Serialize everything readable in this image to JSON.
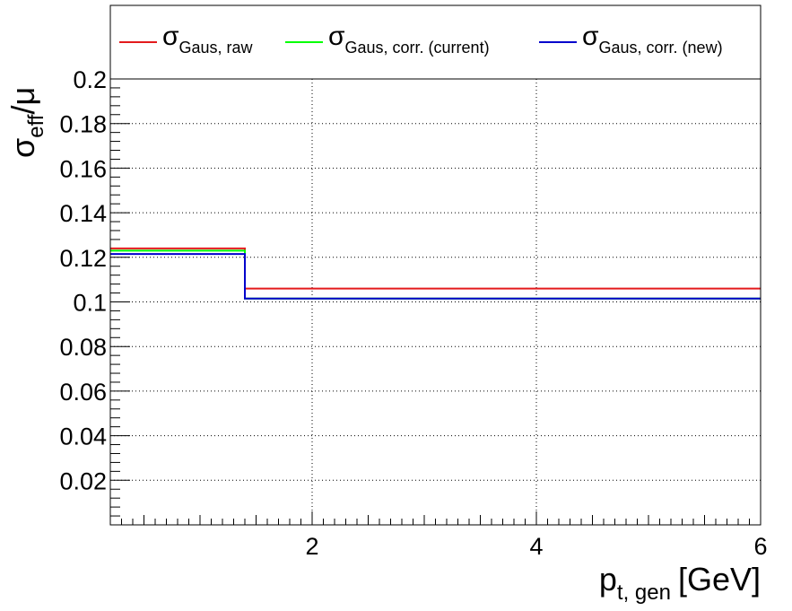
{
  "chart_data": {
    "type": "line",
    "step": true,
    "xlabel": {
      "main": "p",
      "sub": "t, gen",
      "unit": "[GeV]"
    },
    "ylabel": {
      "main": "σ",
      "sub": "eff",
      "rest": "/μ"
    },
    "xlim": [
      0.2,
      6.0
    ],
    "ylim": [
      0.0,
      0.2
    ],
    "x_ticks": [
      2,
      4,
      6
    ],
    "x_tick_labels": [
      "2",
      "4",
      "6"
    ],
    "y_ticks": [
      0.02,
      0.04,
      0.06,
      0.08,
      0.1,
      0.12,
      0.14,
      0.16,
      0.18,
      0.2
    ],
    "y_tick_labels": [
      "0.02",
      "0.04",
      "0.06",
      "0.08",
      "0.1",
      "0.12",
      "0.14",
      "0.16",
      "0.18",
      "0.2"
    ],
    "grid": true,
    "legend_position": "top",
    "bin_edges": [
      0.2,
      1.4,
      6.0
    ],
    "series": [
      {
        "name": {
          "main": "σ",
          "sub": "Gaus, raw"
        },
        "color": "#e31a1c",
        "values": [
          0.124,
          0.106
        ]
      },
      {
        "name": {
          "main": "σ",
          "sub": "Gaus, corr. (current)"
        },
        "color": "#00ff00",
        "values": [
          0.123,
          0.1015
        ]
      },
      {
        "name": {
          "main": "σ",
          "sub": "Gaus, corr. (new)"
        },
        "color": "#0000cc",
        "values": [
          0.1215,
          0.1015
        ]
      }
    ]
  }
}
